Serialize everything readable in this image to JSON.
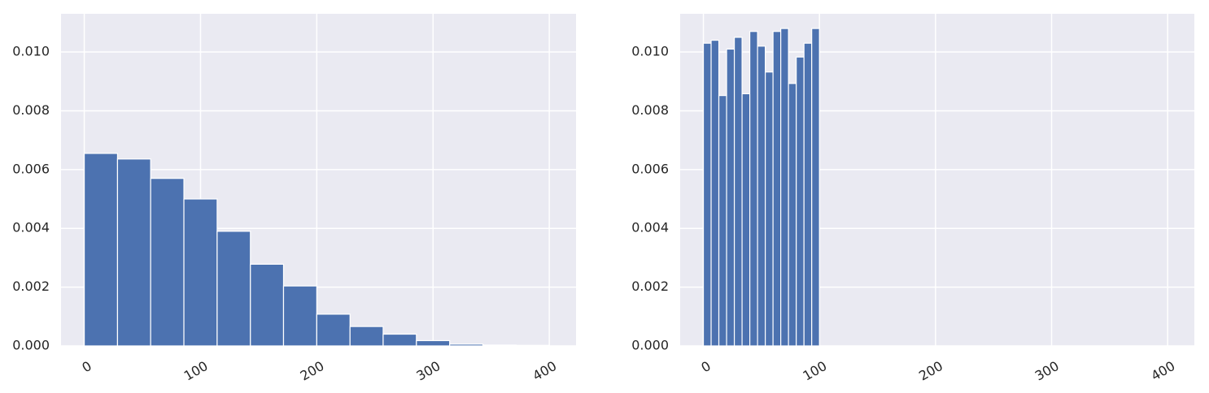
{
  "figure": {
    "background": "#ffffff"
  },
  "style": {
    "axes_background": "#eaeaf2",
    "grid_color": "#ffffff",
    "bar_color": "#4c72b0",
    "bar_edge": "#ffffff",
    "text_color": "#262626"
  },
  "chart_data": [
    {
      "type": "bar",
      "subtype": "histogram",
      "title": "",
      "xlabel": "",
      "ylabel": "",
      "xlim": [
        -20,
        423
      ],
      "ylim": [
        0,
        0.0113
      ],
      "grid": true,
      "xticks": [
        0,
        100,
        200,
        300,
        400
      ],
      "xtick_labels": [
        "0",
        "100",
        "200",
        "300",
        "400"
      ],
      "xtick_rotation": 30,
      "yticks": [
        0,
        0.002,
        0.004,
        0.006,
        0.008,
        0.01
      ],
      "ytick_labels": [
        "0.000",
        "0.002",
        "0.004",
        "0.006",
        "0.008",
        "0.010"
      ],
      "bin_edges": [
        0,
        28.6,
        57.1,
        85.7,
        114.3,
        142.9,
        171.4,
        200,
        228.6,
        257.1,
        285.7,
        314.3,
        342.9,
        371.4,
        400
      ],
      "values": [
        0.00655,
        0.00636,
        0.0057,
        0.005,
        0.0039,
        0.00278,
        0.00204,
        0.00108,
        0.00066,
        0.0004,
        0.00018,
        6e-05,
        3e-05,
        2e-05
      ]
    },
    {
      "type": "bar",
      "subtype": "histogram",
      "title": "",
      "xlabel": "",
      "ylabel": "",
      "xlim": [
        -20,
        423
      ],
      "ylim": [
        0,
        0.0113
      ],
      "grid": true,
      "xticks": [
        0,
        100,
        200,
        300,
        400
      ],
      "xtick_labels": [
        "0",
        "100",
        "200",
        "300",
        "400"
      ],
      "xtick_rotation": 30,
      "yticks": [
        0,
        0.002,
        0.004,
        0.006,
        0.008,
        0.01
      ],
      "ytick_labels": [
        "0.000",
        "0.002",
        "0.004",
        "0.006",
        "0.008",
        "0.010"
      ],
      "bin_edges": [
        0,
        6.67,
        13.33,
        20,
        26.67,
        33.33,
        40,
        46.67,
        53.33,
        60,
        66.67,
        73.33,
        80,
        86.67,
        93.33,
        100
      ],
      "values": [
        0.0103,
        0.0104,
        0.00852,
        0.0101,
        0.0105,
        0.00858,
        0.0107,
        0.0102,
        0.00932,
        0.0107,
        0.0108,
        0.00893,
        0.00983,
        0.0103,
        0.0108
      ]
    }
  ]
}
